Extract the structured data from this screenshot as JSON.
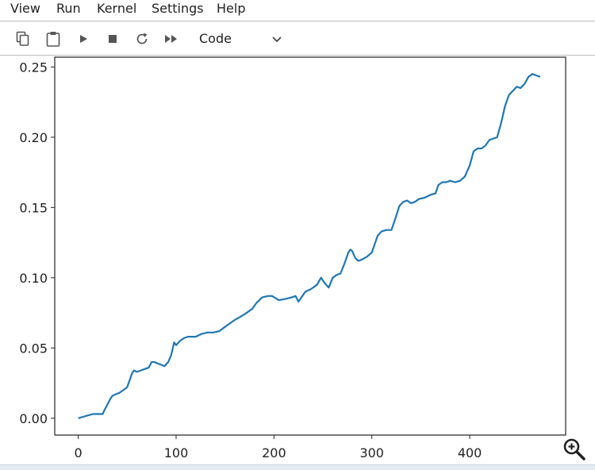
{
  "menu": {
    "items": [
      {
        "label": "View"
      },
      {
        "label": "Run"
      },
      {
        "label": "Kernel"
      },
      {
        "label": "Settings"
      },
      {
        "label": "Help"
      }
    ]
  },
  "toolbar": {
    "buttons": [
      {
        "icon": "copy-icon"
      },
      {
        "icon": "paste-icon"
      },
      {
        "icon": "run-icon"
      },
      {
        "icon": "stop-icon"
      },
      {
        "icon": "restart-icon"
      },
      {
        "icon": "fast-forward-icon"
      }
    ],
    "cell_type": "Code"
  },
  "chart_data": {
    "type": "line",
    "title": "",
    "xlabel": "",
    "ylabel": "",
    "xlim": [
      -24,
      498
    ],
    "ylim": [
      -0.012,
      0.257
    ],
    "xticks": [
      0,
      100,
      200,
      300,
      400
    ],
    "yticks": [
      0.0,
      0.05,
      0.1,
      0.15,
      0.2,
      0.25
    ],
    "xtick_labels": [
      "0",
      "100",
      "200",
      "300",
      "400"
    ],
    "ytick_labels": [
      "0.00",
      "0.05",
      "0.10",
      "0.15",
      "0.20",
      "0.25"
    ],
    "grid": false,
    "line_color": "#1f77b4",
    "series": [
      {
        "x": [
          0,
          5,
          10,
          15,
          20,
          25,
          27,
          30,
          33,
          35,
          38,
          42,
          46,
          50,
          53,
          55,
          57,
          60,
          64,
          68,
          72,
          75,
          78,
          81,
          85,
          88,
          92,
          95,
          98,
          100,
          104,
          108,
          112,
          116,
          120,
          126,
          132,
          138,
          144,
          150,
          156,
          160,
          165,
          170,
          174,
          178,
          182,
          188,
          194,
          198,
          205,
          212,
          218,
          222,
          225,
          228,
          232,
          238,
          244,
          248,
          252,
          256,
          260,
          264,
          268,
          272,
          276,
          278,
          280,
          283,
          286,
          290,
          295,
          300,
          303,
          306,
          310,
          315,
          320,
          324,
          328,
          332,
          336,
          340,
          344,
          348,
          354,
          360,
          365,
          368,
          372,
          376,
          380,
          385,
          390,
          395,
          400,
          404,
          408,
          412,
          416,
          420,
          424,
          428,
          432,
          436,
          440,
          444,
          448,
          452,
          456,
          460,
          464,
          468,
          472
        ],
        "y": [
          0.0,
          0.001,
          0.002,
          0.003,
          0.003,
          0.003,
          0.006,
          0.01,
          0.014,
          0.016,
          0.017,
          0.018,
          0.02,
          0.022,
          0.028,
          0.032,
          0.034,
          0.033,
          0.034,
          0.035,
          0.036,
          0.04,
          0.04,
          0.039,
          0.038,
          0.037,
          0.04,
          0.045,
          0.054,
          0.052,
          0.055,
          0.057,
          0.058,
          0.058,
          0.058,
          0.06,
          0.061,
          0.061,
          0.062,
          0.065,
          0.068,
          0.07,
          0.072,
          0.074,
          0.076,
          0.078,
          0.082,
          0.086,
          0.087,
          0.087,
          0.084,
          0.085,
          0.086,
          0.087,
          0.083,
          0.086,
          0.09,
          0.092,
          0.095,
          0.1,
          0.096,
          0.093,
          0.1,
          0.102,
          0.103,
          0.11,
          0.118,
          0.12,
          0.119,
          0.114,
          0.112,
          0.113,
          0.115,
          0.118,
          0.124,
          0.13,
          0.133,
          0.134,
          0.134,
          0.142,
          0.151,
          0.154,
          0.155,
          0.153,
          0.154,
          0.156,
          0.157,
          0.159,
          0.16,
          0.166,
          0.168,
          0.168,
          0.169,
          0.168,
          0.169,
          0.172,
          0.18,
          0.19,
          0.192,
          0.192,
          0.194,
          0.198,
          0.199,
          0.2,
          0.21,
          0.222,
          0.23,
          0.233,
          0.236,
          0.235,
          0.238,
          0.243,
          0.245,
          0.244,
          0.243
        ]
      }
    ]
  }
}
